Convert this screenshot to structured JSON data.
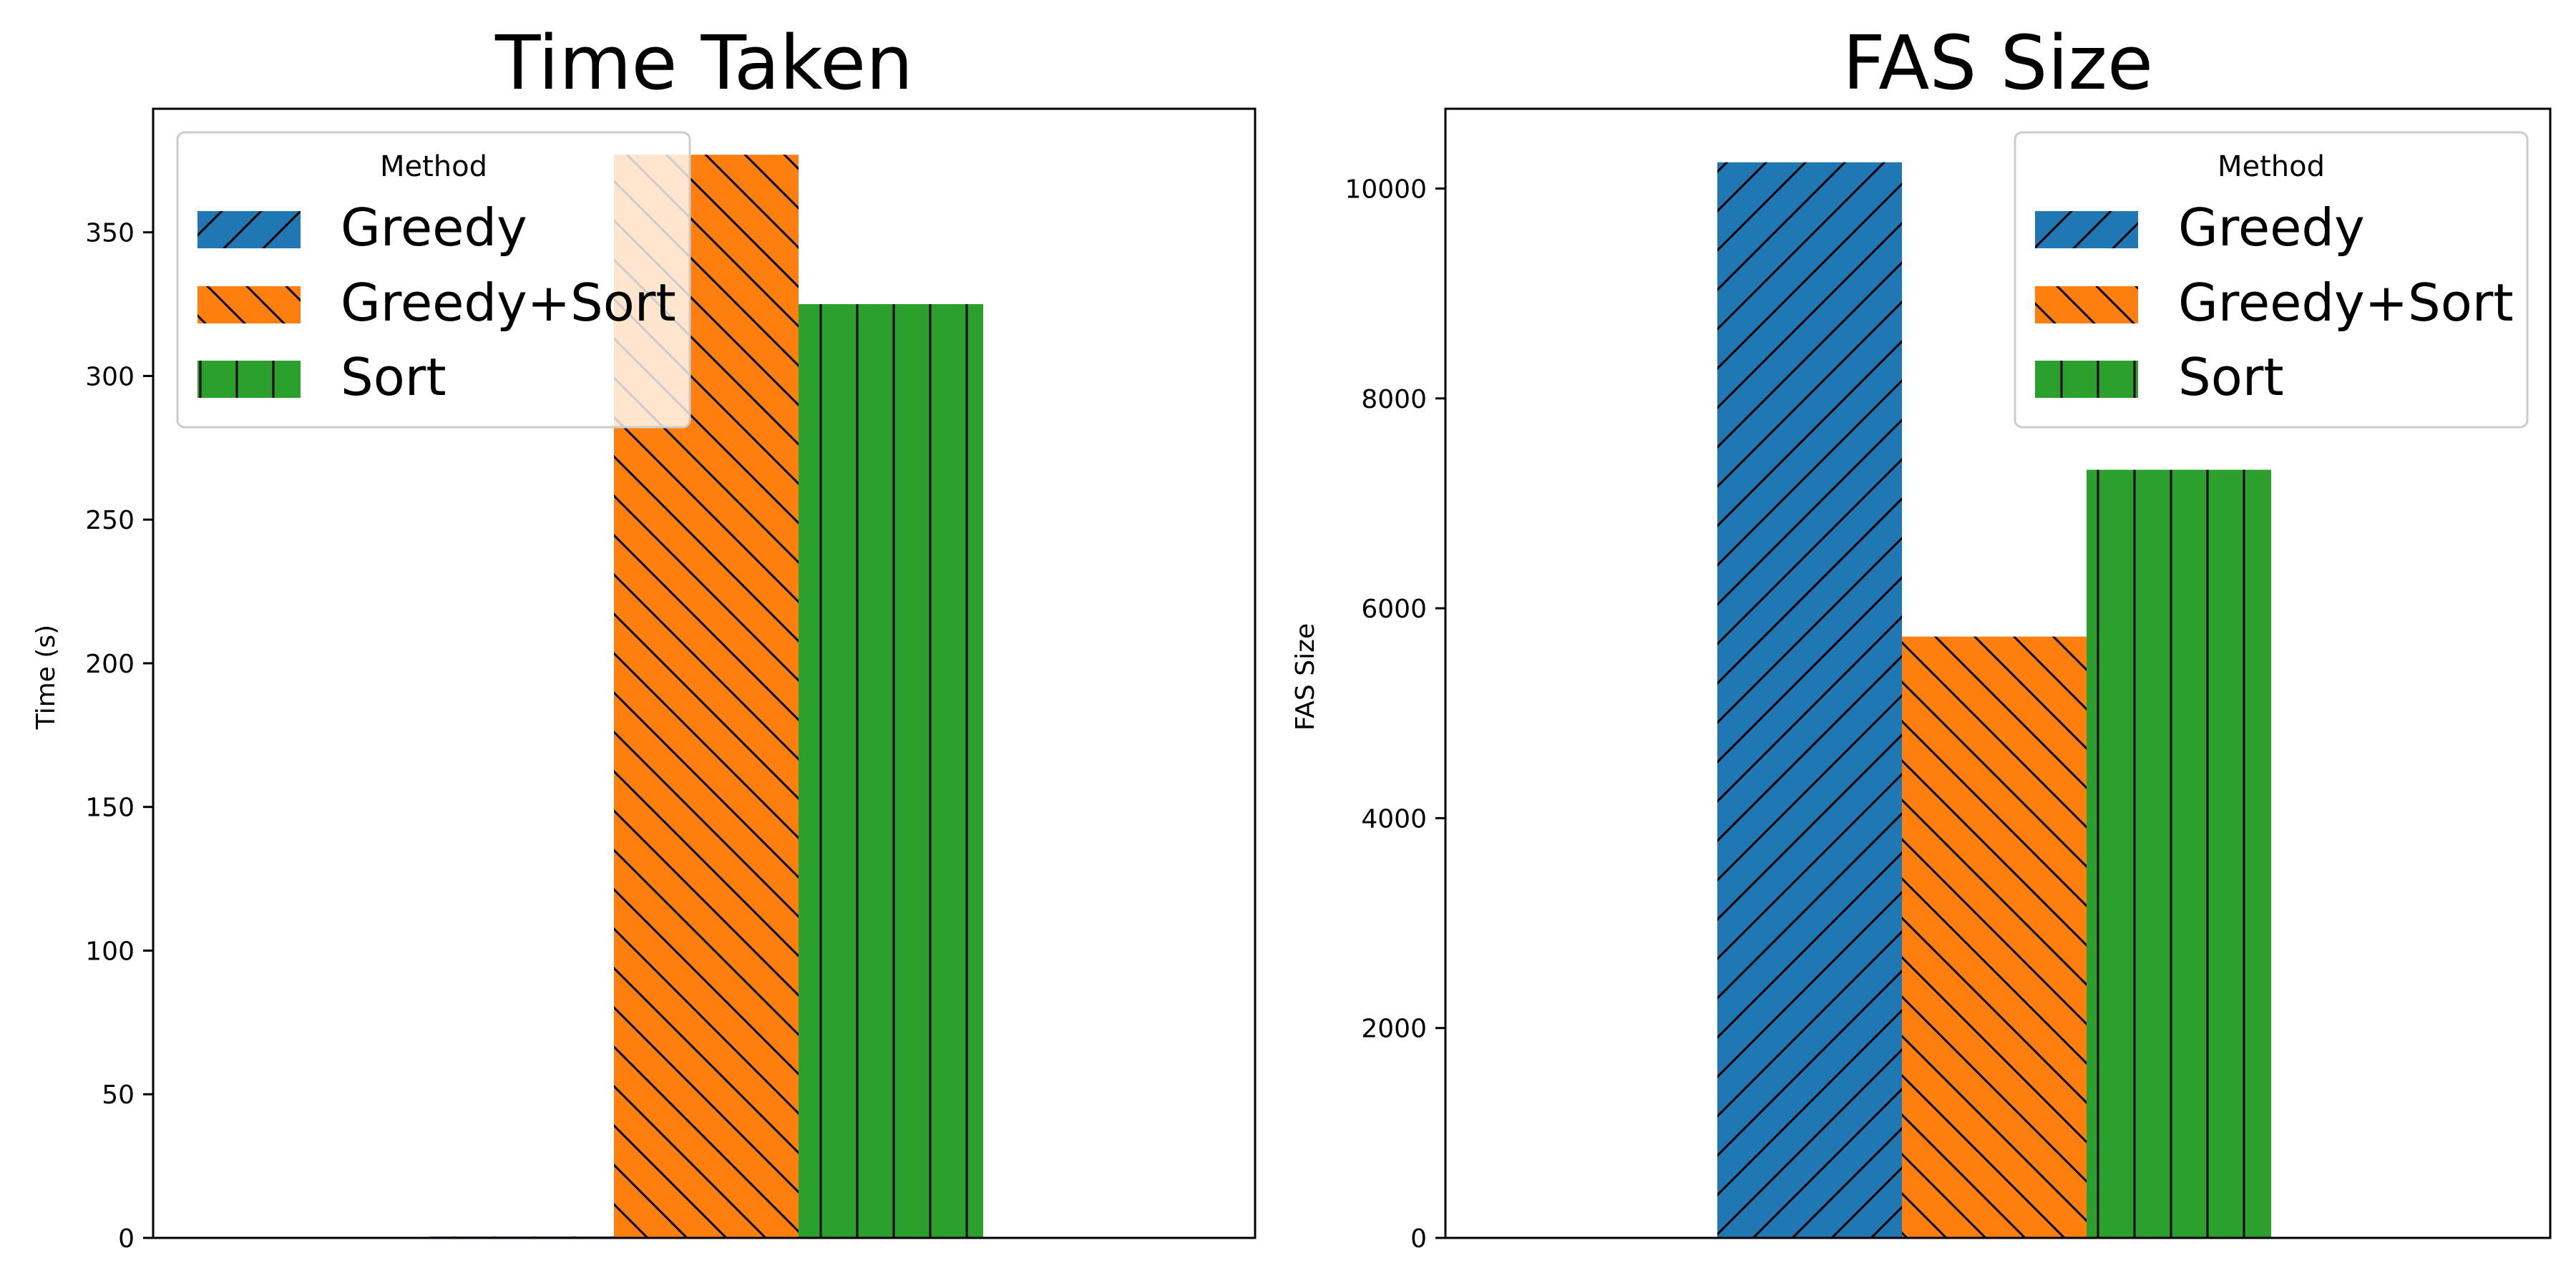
{
  "colors": {
    "greedy": "#1f77b4",
    "greedy_sort": "#ff7f0e",
    "sort": "#2ca02c",
    "hatch": "#000000",
    "legend_border": "#cccccc"
  },
  "chart_data": [
    {
      "type": "bar",
      "title": "Time Taken",
      "xlabel": "",
      "ylabel": "Time (s)",
      "ylim": [
        0,
        393
      ],
      "yticks": [
        0,
        50,
        100,
        150,
        200,
        250,
        300,
        350
      ],
      "legend": {
        "title": "Method",
        "placement": "top-left"
      },
      "series": [
        {
          "name": "Greedy",
          "value": 0.5,
          "color": "#1f77b4",
          "hatch": "/"
        },
        {
          "name": "Greedy+Sort",
          "value": 377,
          "color": "#ff7f0e",
          "hatch": "\\"
        },
        {
          "name": "Sort",
          "value": 325,
          "color": "#2ca02c",
          "hatch": "|"
        }
      ],
      "grid": false
    },
    {
      "type": "bar",
      "title": "FAS Size",
      "xlabel": "",
      "ylabel": "FAS Size",
      "ylim": [
        0,
        10760
      ],
      "yticks": [
        0,
        2000,
        4000,
        6000,
        8000,
        10000
      ],
      "legend": {
        "title": "Method",
        "placement": "top-right"
      },
      "series": [
        {
          "name": "Greedy",
          "value": 10250,
          "color": "#1f77b4",
          "hatch": "/"
        },
        {
          "name": "Greedy+Sort",
          "value": 5730,
          "color": "#ff7f0e",
          "hatch": "\\"
        },
        {
          "name": "Sort",
          "value": 7320,
          "color": "#2ca02c",
          "hatch": "|"
        }
      ],
      "grid": false
    }
  ]
}
